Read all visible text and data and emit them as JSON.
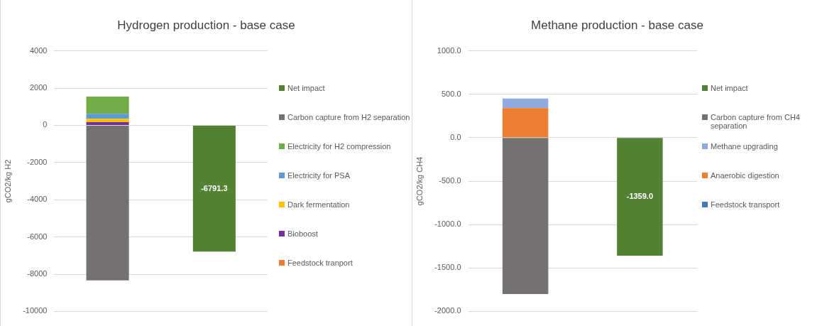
{
  "chart_data": [
    {
      "type": "bar",
      "title": "Hydrogen production - base case",
      "ylabel": "gCO2/kg H2",
      "categories": [
        null,
        null
      ],
      "stacked": true,
      "grid": "y",
      "legend": "right",
      "ylim": [
        -10000,
        4000
      ],
      "yticks": [
        -10000,
        -8000,
        -6000,
        -4000,
        -2000,
        0,
        2000,
        4000
      ],
      "series": [
        {
          "name": "Feedstock tranport",
          "color": "#ed7d31",
          "values": [
            0,
            null
          ]
        },
        {
          "name": "Bioboost",
          "color": "#7030a0",
          "values": [
            170,
            null
          ]
        },
        {
          "name": "Dark fermentation",
          "color": "#ffc000",
          "values": [
            180,
            null
          ]
        },
        {
          "name": "Electricity for PSA",
          "color": "#5b9bd5",
          "values": [
            270,
            null
          ]
        },
        {
          "name": "Electricity for H2 compression",
          "color": "#70ad47",
          "values": [
            920,
            null
          ]
        },
        {
          "name": "Carbon capture from H2 separation",
          "color": "#767171",
          "values": [
            -8330,
            null
          ]
        },
        {
          "name": "Net impact",
          "color": "#548235",
          "values": [
            null,
            -6791.3
          ],
          "value_labels": [
            null,
            "-6791.3"
          ]
        }
      ]
    },
    {
      "type": "bar",
      "title": "Methane production - base case",
      "ylabel": "gCO2/kg CH4",
      "categories": [
        null,
        null
      ],
      "stacked": true,
      "grid": "y",
      "legend": "right",
      "ylim": [
        -2000,
        1000
      ],
      "yticks": [
        {
          "value": -2000,
          "label": "-2000.0"
        },
        {
          "value": -1500,
          "label": "-1500.0"
        },
        {
          "value": -1000,
          "label": "-1000.0"
        },
        {
          "value": -500,
          "label": "-500.0"
        },
        {
          "value": 0,
          "label": "0.0"
        },
        {
          "value": 500,
          "label": "500.0"
        },
        {
          "value": 1000,
          "label": "1000.0"
        }
      ],
      "series": [
        {
          "name": "Feedstock transport",
          "color": "#4472c4",
          "values": [
            0,
            null
          ]
        },
        {
          "name": "Anaerobic digestion",
          "color": "#ed7d31",
          "values": [
            340,
            null
          ]
        },
        {
          "name": "Methane upgrading",
          "color": "#8faadc",
          "values": [
            110,
            null
          ]
        },
        {
          "name": "Carbon capture from CH4 separation",
          "color": "#767171",
          "values": [
            -1800,
            null
          ]
        },
        {
          "name": "Net impact",
          "color": "#548235",
          "values": [
            null,
            -1359.0
          ],
          "value_labels": [
            null,
            "-1359.0"
          ]
        }
      ]
    }
  ]
}
